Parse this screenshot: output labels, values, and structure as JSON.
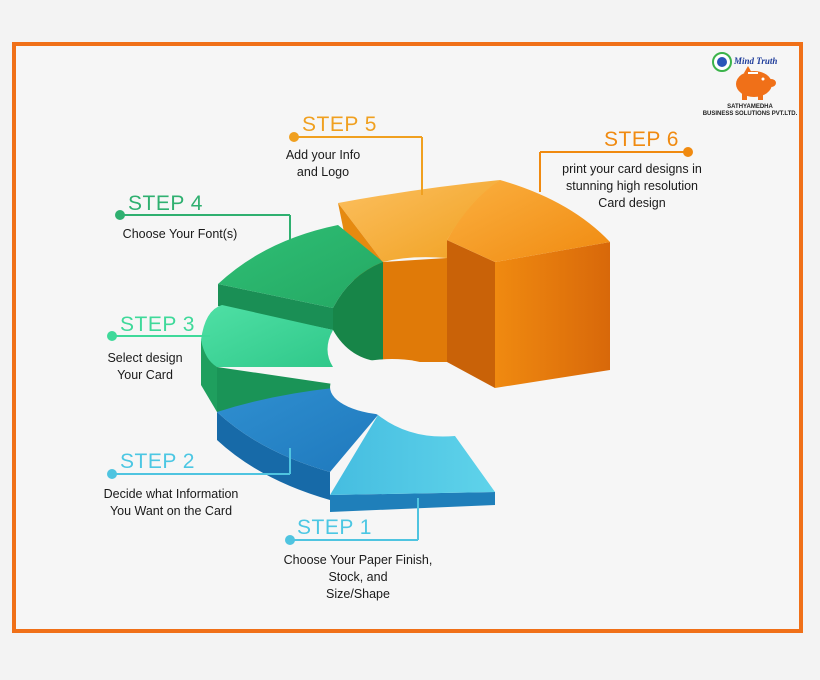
{
  "logo": {
    "brand": "Mind Truth",
    "company_line1": "SATHYAMEDHA",
    "company_line2": "BUSINESS SOLUTIONS PVT.LTD."
  },
  "colors": {
    "border": "#f07018",
    "step1": "#4cc7e3",
    "step2": "#2b8fcf",
    "step3": "#3fd99a",
    "step4": "#2fb070",
    "step5": "#f0a020",
    "step6": "#f08a10"
  },
  "steps": [
    {
      "title": "STEP 1",
      "desc": "Choose Your Paper Finish,\nStock, and\nSize/Shape"
    },
    {
      "title": "STEP 2",
      "desc": "Decide what Information\nYou Want on the Card"
    },
    {
      "title": "STEP 3",
      "desc": "Select design\nYour Card"
    },
    {
      "title": "STEP 4",
      "desc": "Choose Your Font(s)"
    },
    {
      "title": "STEP 5",
      "desc": "Add your Info\nand Logo"
    },
    {
      "title": "STEP 6",
      "desc": "print your card designs in\nstunning high resolution\nCard design"
    }
  ]
}
